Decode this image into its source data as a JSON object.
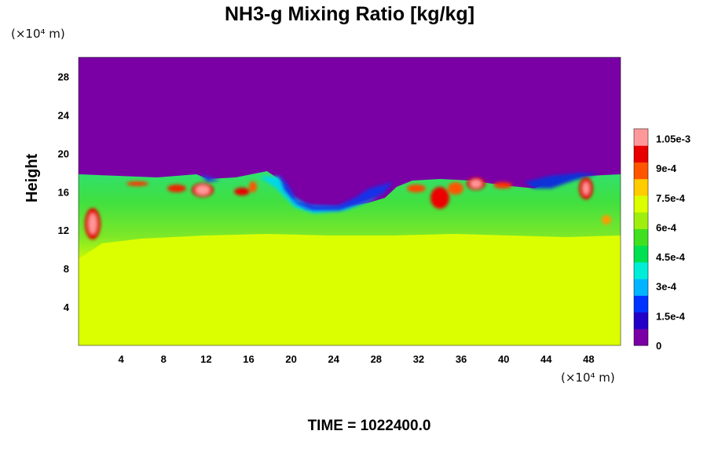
{
  "chart_data": {
    "type": "heatmap",
    "title": "NH3-g Mixing Ratio [kg/kg]",
    "ylabel": "Height",
    "xlabel": "",
    "x_unit_label": "(×10⁴ m)",
    "y_unit_label": "(×10⁴ m)",
    "x_ticks": [
      "4",
      "8",
      "12",
      "16",
      "20",
      "24",
      "28",
      "32",
      "36",
      "40",
      "44",
      "48"
    ],
    "y_ticks": [
      "4",
      "8",
      "12",
      "16",
      "20",
      "24",
      "28"
    ],
    "xlim": [
      0,
      51
    ],
    "ylim": [
      0,
      30
    ],
    "colorbar": {
      "min": 0,
      "max": 0.0011,
      "labels": [
        "0",
        "1.5e-4",
        "3e-4",
        "4.5e-4",
        "6e-4",
        "7.5e-4",
        "9e-4",
        "1.05e-3"
      ],
      "label_values": [
        0,
        0.00015,
        0.0003,
        0.00045,
        0.0006,
        0.00075,
        0.0009,
        0.00105
      ],
      "colors": [
        "#7a00a6",
        "#2200c8",
        "#0033ff",
        "#00b4ff",
        "#00eed8",
        "#00e050",
        "#40e020",
        "#a0ee10",
        "#dcff00",
        "#ffcc00",
        "#ff5500",
        "#e80000",
        "#ff9999"
      ]
    },
    "regions": [
      {
        "description": "lower layer",
        "y_range": [
          0,
          11
        ],
        "value": 0.00078
      },
      {
        "description": "mixed layer",
        "y_range": [
          11,
          18
        ],
        "value": 0.0005
      },
      {
        "description": "upper layer",
        "y_range": [
          18,
          30
        ],
        "value": 0
      }
    ],
    "grid": false,
    "legend": "colorbar-right"
  },
  "footer": {
    "time_label": "TIME = 1022400.0"
  }
}
